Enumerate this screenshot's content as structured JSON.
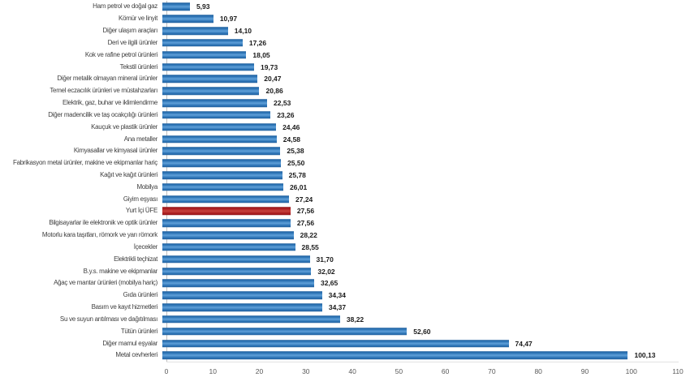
{
  "chart_data": {
    "type": "bar",
    "orientation": "horizontal",
    "title": "",
    "categories": [
      "Ham petrol ve doğal gaz",
      "Kömür ve linyit",
      "Diğer ulaşım araçları",
      "Deri ve ilgili ürünler",
      "Kok ve rafine petrol ürünleri",
      "Tekstil ürünleri",
      "Diğer metalik olmayan mineral ürünler",
      "Temel eczacılık ürünleri ve müstahzarları",
      "Elektrik, gaz, buhar ve iklimlendirme",
      "Diğer madencilik ve taş ocakçılığı ürünleri",
      "Kauçuk ve plastik ürünler",
      "Ana metaller",
      "Kimyasallar ve kimyasal ürünler",
      "Fabrikasyon metal ürünler, makine ve ekipmanlar hariç",
      "Kağıt ve kağıt ürünleri",
      "Mobilya",
      "Giyim eşyası",
      "Yurt İçi ÜFE",
      "Bilgisayarlar ile elektronik ve optik ürünler",
      "Motorlu kara taşıtları, römork ve yarı römork",
      "İçecekler",
      "Elektrikli teçhizat",
      "B.y.s. makine ve ekipmanlar",
      "Ağaç ve mantar ürünleri (mobilya hariç)",
      "Gıda ürünleri",
      "Basım ve kayıt hizmetleri",
      "Su ve suyun arıtılması ve dağıtılması",
      "Tütün ürünleri",
      "Diğer mamul eşyalar",
      "Metal cevherleri"
    ],
    "values": [
      5.93,
      10.97,
      14.1,
      17.26,
      18.05,
      19.73,
      20.47,
      20.86,
      22.53,
      23.26,
      24.46,
      24.58,
      25.38,
      25.5,
      25.78,
      26.01,
      27.24,
      27.56,
      27.56,
      28.22,
      28.55,
      31.7,
      32.02,
      32.65,
      34.34,
      34.37,
      38.22,
      52.6,
      74.47,
      100.13
    ],
    "value_labels": [
      "5,93",
      "10,97",
      "14,10",
      "17,26",
      "18,05",
      "19,73",
      "20,47",
      "20,86",
      "22,53",
      "23,26",
      "24,46",
      "24,58",
      "25,38",
      "25,50",
      "25,78",
      "26,01",
      "27,24",
      "27,56",
      "27,56",
      "28,22",
      "28,55",
      "31,70",
      "32,02",
      "32,65",
      "34,34",
      "34,37",
      "38,22",
      "52,60",
      "74,47",
      "100,13"
    ],
    "highlight_category": "Yurt İçi ÜFE",
    "highlight_index": 17,
    "xlabel": "",
    "ylabel": "",
    "xlim": [
      0,
      110
    ],
    "x_ticks": [
      0,
      10,
      20,
      30,
      40,
      50,
      60,
      70,
      80,
      90,
      100,
      110
    ],
    "grid": false,
    "legend": false,
    "colors": {
      "bar": "#2E75B6",
      "bar_dark": "#1F5F9E",
      "bar_light": "#5E9FD8",
      "highlight": "#AD1F21",
      "highlight_dark": "#8F1418",
      "highlight_light": "#C7413C",
      "axis_line": "#BFBFBF",
      "baseline": "#E2E2E2",
      "category_label": "#404040",
      "value_label": "#1A1A1A",
      "tick_label": "#595959"
    }
  }
}
